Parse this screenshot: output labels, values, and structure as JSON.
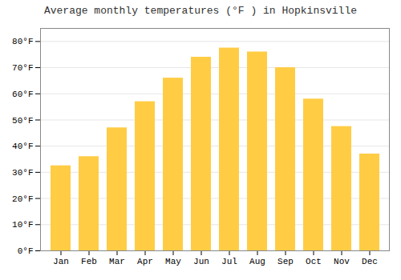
{
  "chart_data": {
    "type": "bar",
    "title": "Average monthly temperatures (°F ) in Hopkinsville",
    "categories": [
      "Jan",
      "Feb",
      "Mar",
      "Apr",
      "May",
      "Jun",
      "Jul",
      "Aug",
      "Sep",
      "Oct",
      "Nov",
      "Dec"
    ],
    "values": [
      32.5,
      36.0,
      47.0,
      57.0,
      66.0,
      74.0,
      77.5,
      76.0,
      70.0,
      58.0,
      47.5,
      37.0
    ],
    "color": "#FFCC44",
    "ylim": [
      0,
      85
    ],
    "yticks": [
      {
        "value": 0,
        "label": "0°F"
      },
      {
        "value": 10,
        "label": "10°F"
      },
      {
        "value": 20,
        "label": "20°F"
      },
      {
        "value": 30,
        "label": "30°F"
      },
      {
        "value": 40,
        "label": "40°F"
      },
      {
        "value": 50,
        "label": "50°F"
      },
      {
        "value": 60,
        "label": "60°F"
      },
      {
        "value": 70,
        "label": "70°F"
      },
      {
        "value": 80,
        "label": "80°F"
      }
    ],
    "grid": true
  }
}
